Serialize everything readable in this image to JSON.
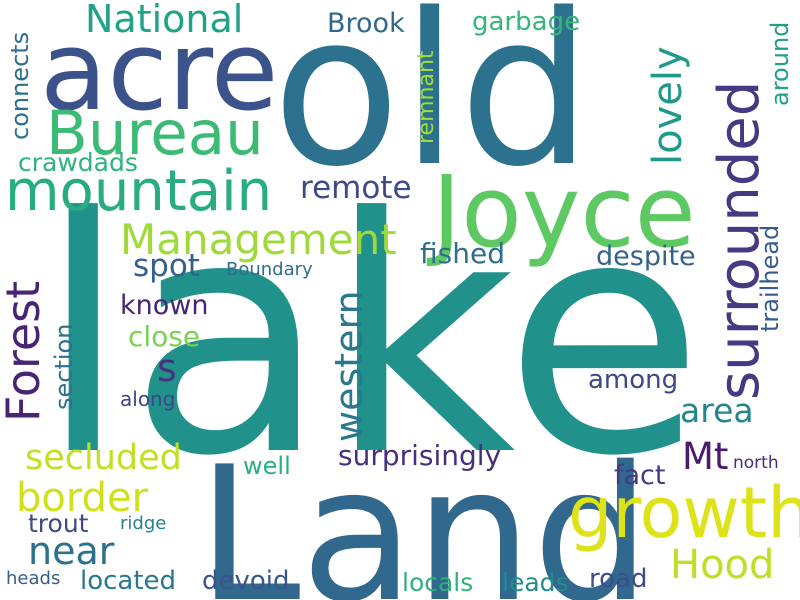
{
  "words": {
    "lake": {
      "text": "lake",
      "color": "#21918c"
    },
    "land": {
      "text": "Land",
      "color": "#31688e"
    },
    "old": {
      "text": "old",
      "color": "#2c728e"
    },
    "joyce": {
      "text": "Joyce",
      "color": "#5ec962"
    },
    "acre": {
      "text": "acre",
      "color": "#3b528b"
    },
    "growth": {
      "text": "growth",
      "color": "#dde318"
    },
    "surrounded": {
      "text": "surrounded",
      "color": "#443983"
    },
    "bureau": {
      "text": "Bureau",
      "color": "#3bbb75"
    },
    "mountain": {
      "text": "mountain",
      "color": "#27ad81"
    },
    "management": {
      "text": "Management",
      "color": "#9fda3a"
    },
    "forest": {
      "text": "Forest",
      "color": "#482475"
    },
    "western": {
      "text": "western",
      "color": "#2a788e"
    },
    "national": {
      "text": "National",
      "color": "#20a386"
    },
    "border": {
      "text": "border",
      "color": "#d0e11c"
    },
    "secluded": {
      "text": "secluded",
      "color": "#c2df23"
    },
    "near": {
      "text": "near",
      "color": "#2c728e"
    },
    "hood": {
      "text": "Hood",
      "color": "#bddf26"
    },
    "lovely": {
      "text": "lovely",
      "color": "#1f9a8a"
    },
    "remote": {
      "text": "remote",
      "color": "#3e4a89"
    },
    "area": {
      "text": "area",
      "color": "#25858e"
    },
    "mt": {
      "text": "Mt",
      "color": "#481b6d"
    },
    "surprisingly": {
      "text": "surprisingly",
      "color": "#46307e"
    },
    "spot": {
      "text": "spot",
      "color": "#355f8d"
    },
    "s": {
      "text": "s",
      "color": "#46327e"
    },
    "brook": {
      "text": "Brook",
      "color": "#31688e"
    },
    "garbage": {
      "text": "garbage",
      "color": "#35b779"
    },
    "trailhead": {
      "text": "trailhead",
      "color": "#365c8d"
    },
    "fished": {
      "text": "fished",
      "color": "#2e6f8e"
    },
    "despite": {
      "text": "despite",
      "color": "#33638d"
    },
    "known": {
      "text": "known",
      "color": "#482475"
    },
    "close": {
      "text": "close",
      "color": "#7ad151"
    },
    "among": {
      "text": "among",
      "color": "#3f4788"
    },
    "section": {
      "text": "section",
      "color": "#2d708e"
    },
    "fact": {
      "text": "fact",
      "color": "#443983"
    },
    "trout": {
      "text": "trout",
      "color": "#3e4a89"
    },
    "located": {
      "text": "located",
      "color": "#2a788e"
    },
    "devoid": {
      "text": "devoid",
      "color": "#39568c"
    },
    "locals": {
      "text": "locals",
      "color": "#2db27d"
    },
    "leads": {
      "text": "leads",
      "color": "#228d8d"
    },
    "road": {
      "text": "road",
      "color": "#3e4c8a"
    },
    "crawdads": {
      "text": "crawdads",
      "color": "#2eb37c"
    },
    "connects": {
      "text": "connects",
      "color": "#2d708e"
    },
    "remnant": {
      "text": "remnant",
      "color": "#a5db36"
    },
    "around": {
      "text": "around",
      "color": "#1fa088"
    },
    "well": {
      "text": "well",
      "color": "#29af7f"
    },
    "boundary": {
      "text": "Boundary",
      "color": "#2f6c8e"
    },
    "along": {
      "text": "along",
      "color": "#414487"
    },
    "ridge": {
      "text": "ridge",
      "color": "#26818e"
    },
    "north": {
      "text": "north",
      "color": "#472d7b"
    },
    "heads": {
      "text": "heads",
      "color": "#355f8d"
    }
  }
}
